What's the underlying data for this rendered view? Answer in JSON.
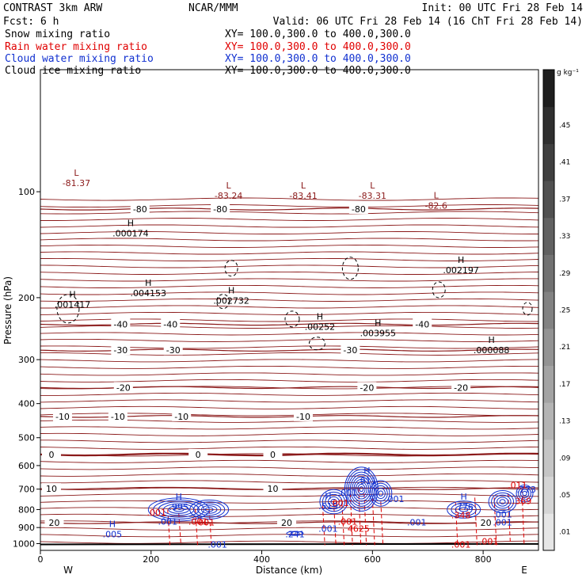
{
  "header": {
    "model": "CONTRAST  3km ARW",
    "center": "NCAR/MMM",
    "init": "Init: 00 UTC Fri 28 Feb 14",
    "fcst": "Fcst:    6 h",
    "valid": "Valid: 06 UTC Fri 28 Feb 14 (16 ChT Fri 28 Feb 14)"
  },
  "fields": [
    {
      "name": "Snow mixing ratio",
      "xy": "XY= 100.0,300.0 to 400.0,300.0",
      "color": "#000000"
    },
    {
      "name": "Rain water mixing ratio",
      "xy": "XY= 100.0,300.0 to 400.0,300.0",
      "color": "#e00000"
    },
    {
      "name": "Cloud water mixing ratio",
      "xy": "XY= 100.0,300.0 to 400.0,300.0",
      "color": "#1030d0"
    },
    {
      "name": "Cloud ice mixing ratio",
      "xy": "XY= 100.0,300.0 to 400.0,300.0",
      "color": "#000000"
    }
  ],
  "colors": {
    "temperature": "#8b1a1a",
    "snow": "#000000",
    "rain": "#e00000",
    "cloud_water": "#1030d0",
    "cloud_ice": "#000000"
  },
  "chart_data": {
    "type": "contour-cross-section",
    "xlabel": "Distance (km)",
    "ylabel": "Pressure (hPa)",
    "xlim": [
      0,
      900
    ],
    "ylim": [
      1045,
      45
    ],
    "yscale": "log",
    "x_ticks": [
      0,
      200,
      400,
      600,
      800
    ],
    "y_ticks": [
      100,
      200,
      300,
      400,
      500,
      600,
      700,
      800,
      900,
      1000
    ],
    "x_end_labels": {
      "left": "W",
      "right": "E"
    },
    "temperature_contours": [
      {
        "p": 112,
        "label": "-80",
        "x": [
          180,
          325,
          575
        ]
      },
      {
        "p": 238,
        "label": "-40",
        "x": [
          145,
          235,
          690
        ]
      },
      {
        "p": 282,
        "label": "-30",
        "x": [
          145,
          240,
          560
        ]
      },
      {
        "p": 360,
        "label": "-20",
        "x": [
          150,
          590,
          760
        ]
      },
      {
        "p": 435,
        "label": "-10",
        "x": [
          40,
          140,
          255,
          475
        ]
      },
      {
        "p": 558,
        "label": "0",
        "x": [
          20,
          285,
          420
        ]
      },
      {
        "p": 698,
        "label": "10",
        "x": [
          20,
          420
        ]
      },
      {
        "p": 872,
        "label": "20",
        "x": [
          25,
          445,
          805
        ]
      }
    ],
    "temperature_extremes": [
      {
        "kind": "L",
        "value": "-81.37",
        "x": 65,
        "p": 95
      },
      {
        "kind": "L",
        "value": "-83.24",
        "x": 340,
        "p": 103
      },
      {
        "kind": "L",
        "value": "-83.41",
        "x": 475,
        "p": 103
      },
      {
        "kind": "L",
        "value": "-83.31",
        "x": 600,
        "p": 103
      },
      {
        "kind": "L",
        "value": "-82.6",
        "x": 715,
        "p": 110
      }
    ],
    "cloud_ice_maxima": [
      {
        "kind": "H",
        "value": ".000174",
        "x": 163,
        "p": 132
      },
      {
        "kind": "H",
        "value": ".001417",
        "x": 58,
        "p": 210
      },
      {
        "kind": "H",
        "value": ".004153",
        "x": 195,
        "p": 195
      },
      {
        "kind": "H",
        "value": ".002732",
        "x": 345,
        "p": 205
      },
      {
        "kind": "H",
        "value": ".00252",
        "x": 505,
        "p": 243
      },
      {
        "kind": "H",
        "value": ".003955",
        "x": 610,
        "p": 253
      },
      {
        "kind": "H",
        "value": ".002197",
        "x": 760,
        "p": 168
      },
      {
        "kind": "H",
        "value": ".000088",
        "x": 815,
        "p": 283
      }
    ],
    "cloud_water_labels": [
      {
        "kind": "H",
        "value": ".005",
        "x": 130,
        "p": 945
      },
      {
        "kind": "H",
        "value": ".995",
        "x": 250,
        "p": 790
      },
      {
        "kind": "H",
        "value": ".519",
        "x": 520,
        "p": 785
      },
      {
        "kind": "H",
        "value": ".911",
        "x": 590,
        "p": 665
      },
      {
        "kind": "H",
        "value": ".776",
        "x": 765,
        "p": 790
      },
      {
        "kind": "",
        "value": ".241",
        "x": 460,
        "p": 945
      },
      {
        "kind": "",
        "value": ".001",
        "x": 230,
        "p": 870
      },
      {
        "kind": "",
        "value": ".001",
        "x": 520,
        "p": 910
      },
      {
        "kind": "",
        "value": ".001",
        "x": 555,
        "p": 720
      },
      {
        "kind": "",
        "value": ".001",
        "x": 640,
        "p": 750
      },
      {
        "kind": "",
        "value": ".001",
        "x": 680,
        "p": 875
      },
      {
        "kind": "",
        "value": ".001",
        "x": 835,
        "p": 830
      },
      {
        "kind": "",
        "value": ".001",
        "x": 320,
        "p": 1010
      },
      {
        "kind": "",
        "value": ".001",
        "x": 835,
        "p": 875
      },
      {
        "kind": "",
        "value": ".773",
        "x": 878,
        "p": 705
      }
    ],
    "rain_labels": [
      {
        "kind": "",
        "value": ".001",
        "x": 210,
        "p": 820
      },
      {
        "kind": "",
        "value": ".001",
        "x": 285,
        "p": 870
      },
      {
        "kind": "",
        "value": ".001",
        "x": 540,
        "p": 770
      },
      {
        "kind": "",
        "value": ".001",
        "x": 555,
        "p": 870
      },
      {
        "kind": "",
        "value": "4625",
        "x": 575,
        "p": 910
      },
      {
        "kind": "",
        "value": ".348",
        "x": 760,
        "p": 835
      },
      {
        "kind": "",
        "value": ".369",
        "x": 870,
        "p": 760
      },
      {
        "kind": "",
        "value": ".001",
        "x": 760,
        "p": 1010
      },
      {
        "kind": "",
        "value": ".001",
        "x": 810,
        "p": 990
      },
      {
        "kind": "",
        "value": ".011",
        "x": 862,
        "p": 685
      },
      {
        "kind": "",
        "value": "001",
        "x": 300,
        "p": 875
      }
    ],
    "colorbar": {
      "unit": "g kg⁻¹",
      "ticks": [
        ".01",
        ".05",
        ".09",
        ".13",
        ".17",
        ".21",
        ".25",
        ".29",
        ".33",
        ".37",
        ".41",
        ".45"
      ]
    }
  }
}
